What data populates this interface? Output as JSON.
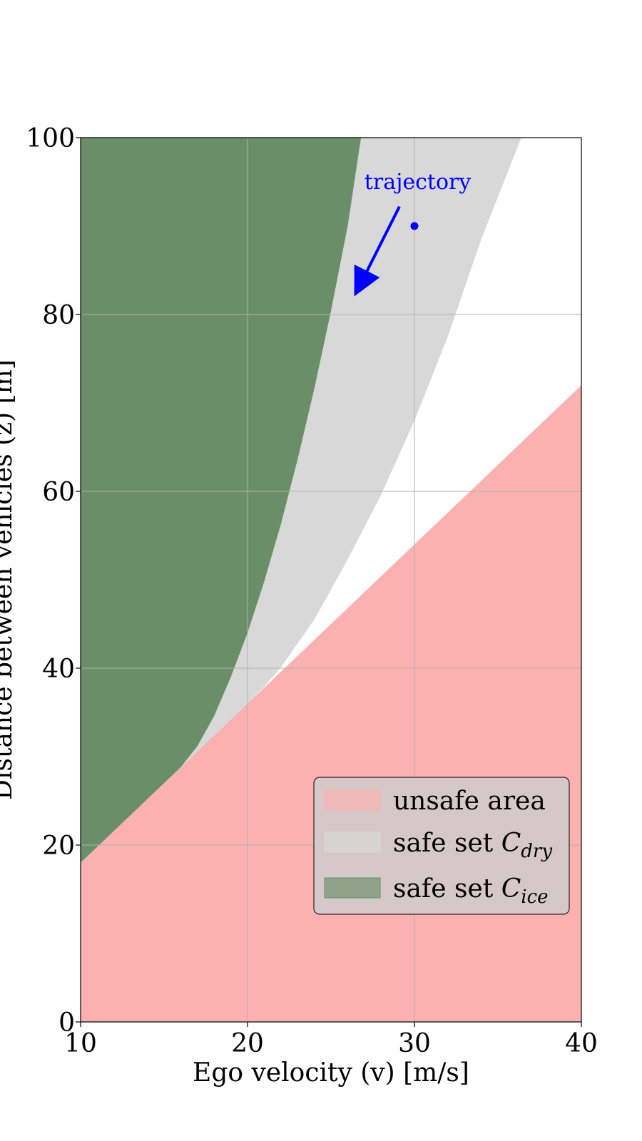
{
  "chart_data": {
    "type": "area",
    "xlabel": "Ego velocity (v) [m/s]",
    "ylabel": "Distance between vehicles (z) [m]",
    "xlim": [
      10,
      40
    ],
    "ylim": [
      0,
      100
    ],
    "x_ticks": [
      10,
      20,
      30,
      40
    ],
    "y_ticks": [
      0,
      20,
      40,
      60,
      80,
      100
    ],
    "grid": true,
    "legend_position": "lower-right",
    "series": [
      {
        "name": "unsafe area",
        "color": "#fcb1b1",
        "kind": "region-below",
        "x": [
          10,
          40
        ],
        "upper_y": [
          18,
          72
        ]
      },
      {
        "name": "safe set C_dry",
        "legend_main": "safe set ",
        "legend_symbol": "C",
        "legend_sub": "dry",
        "color": "#d8d8d8",
        "kind": "region-above",
        "x": [
          10,
          12,
          14,
          16,
          18,
          20,
          21,
          22,
          24,
          26,
          28,
          30,
          32,
          34,
          36.4
        ],
        "lower_y": [
          18,
          21.6,
          25.2,
          28.8,
          32.4,
          36,
          37.9,
          40.1,
          45.5,
          52.3,
          59.6,
          68,
          77.5,
          88.5,
          100
        ]
      },
      {
        "name": "safe set C_ice",
        "legend_main": "safe set ",
        "legend_symbol": "C",
        "legend_sub": "ice",
        "color": "#6a8f68",
        "kind": "region-above",
        "x": [
          10,
          12,
          14,
          16,
          17,
          18,
          19,
          20,
          21,
          22,
          23,
          24,
          25,
          26,
          26.8
        ],
        "lower_y": [
          18,
          21.6,
          25.2,
          28.8,
          31.2,
          34.6,
          39.0,
          44.0,
          49.8,
          56.3,
          63.6,
          71.6,
          80.4,
          90.0,
          100
        ]
      }
    ],
    "annotations": [
      {
        "text": "trajectory",
        "color": "#0000ff",
        "text_x": 27,
        "text_y": 94.2,
        "arrow_from": [
          29.1,
          92.2
        ],
        "arrow_to": [
          26.7,
          83.2
        ]
      }
    ],
    "points": [
      {
        "x": 30,
        "y": 90,
        "color": "#0000ff"
      }
    ]
  }
}
